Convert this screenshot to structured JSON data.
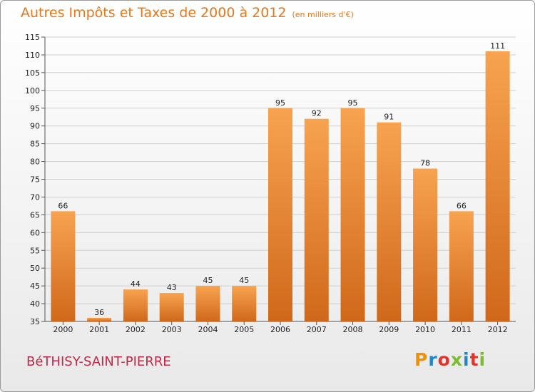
{
  "chart_data": {
    "type": "bar",
    "title": "Autres Impôts et Taxes de 2000 à 2012",
    "unit_note": "(en milliers d'€)",
    "categories": [
      "2000",
      "2001",
      "2002",
      "2003",
      "2004",
      "2005",
      "2006",
      "2007",
      "2008",
      "2009",
      "2010",
      "2011",
      "2012"
    ],
    "values": [
      66,
      36,
      44,
      43,
      45,
      45,
      95,
      92,
      95,
      91,
      78,
      66,
      111
    ],
    "ylim": [
      35,
      115
    ],
    "yticks": [
      35,
      40,
      45,
      50,
      55,
      60,
      65,
      70,
      75,
      80,
      85,
      90,
      95,
      100,
      105,
      110,
      115
    ],
    "grid": true,
    "bar_color_top": "#f7a350",
    "bar_color_bottom": "#d0681a"
  },
  "footer": {
    "commune": "BéTHISY-SAINT-PIERRE",
    "logo_text": "Proxiti",
    "logo_colors": [
      "#f39000",
      "#1e88c9",
      "#e6332a",
      "#7dbb30",
      "#1e88c9",
      "#e6332a",
      "#7dbb30"
    ]
  }
}
